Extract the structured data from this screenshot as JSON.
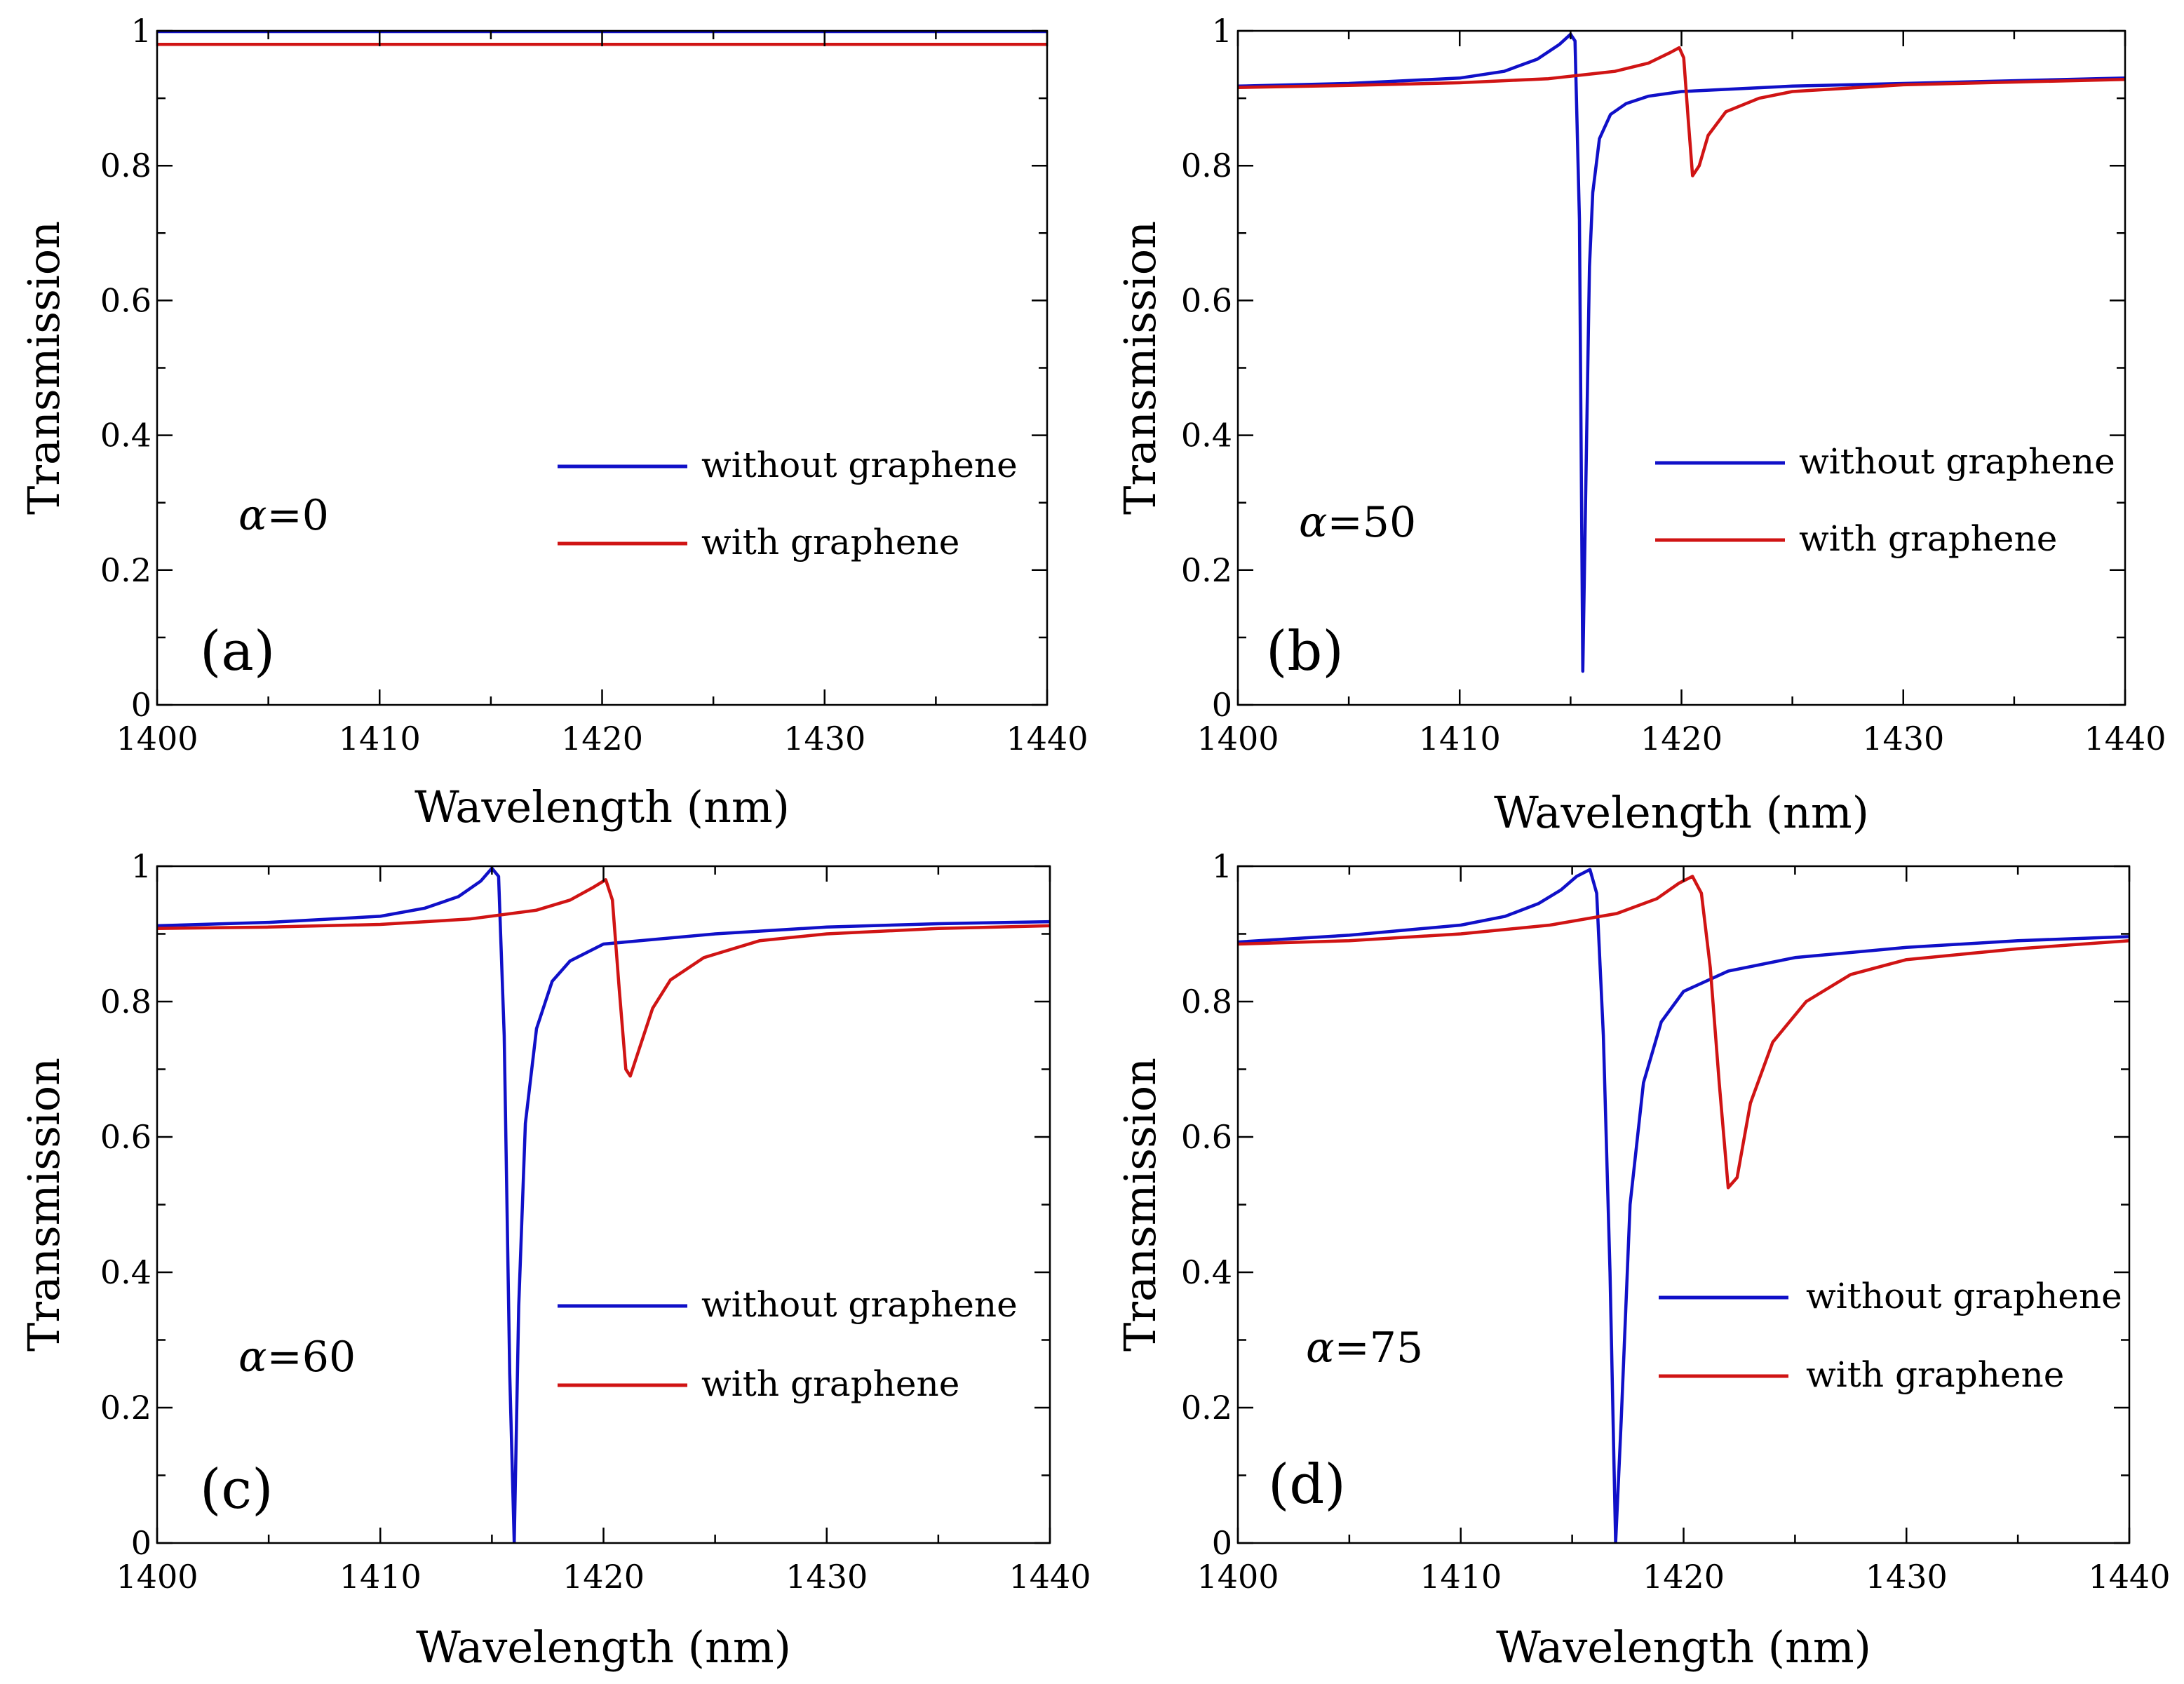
{
  "figure": {
    "series_names": [
      "without graphene",
      "with graphene"
    ],
    "series_colors": [
      "#1010c8",
      "#d01414"
    ]
  },
  "chart_data": [
    {
      "type": "line",
      "panel_label": "(a)",
      "annotation": "α=0",
      "xlabel": "Wavelength (nm)",
      "ylabel": "Transmission",
      "xlim": [
        1400,
        1440
      ],
      "ylim": [
        0,
        1
      ],
      "xticks": [
        "1400",
        "1410",
        "1420",
        "1430",
        "1440"
      ],
      "yticks": [
        "0",
        "0.2",
        "0.4",
        "0.6",
        "0.8",
        "1"
      ],
      "legend_position": "center-right",
      "series": [
        {
          "name": "without graphene",
          "color": "#1010c8",
          "x": [
            1400,
            1440
          ],
          "y": [
            0.999,
            0.999
          ]
        },
        {
          "name": "with graphene",
          "color": "#d01414",
          "x": [
            1400,
            1440
          ],
          "y": [
            0.98,
            0.98
          ]
        }
      ]
    },
    {
      "type": "line",
      "panel_label": "(b)",
      "annotation": "α=50",
      "xlabel": "Wavelength (nm)",
      "ylabel": "Transmission",
      "xlim": [
        1400,
        1440
      ],
      "ylim": [
        0,
        1
      ],
      "xticks": [
        "1400",
        "1410",
        "1420",
        "1430",
        "1440"
      ],
      "yticks": [
        "0",
        "0.2",
        "0.4",
        "0.6",
        "0.8",
        "1"
      ],
      "legend_position": "center-right",
      "series": [
        {
          "name": "without graphene",
          "color": "#1010c8",
          "x": [
            1400,
            1405,
            1410,
            1412,
            1413.5,
            1414.5,
            1415.0,
            1415.2,
            1415.4,
            1415.55,
            1415.7,
            1415.85,
            1416.0,
            1416.3,
            1416.8,
            1417.5,
            1418.5,
            1420,
            1425,
            1430,
            1435,
            1440
          ],
          "y": [
            0.918,
            0.922,
            0.93,
            0.94,
            0.958,
            0.98,
            0.995,
            0.985,
            0.72,
            0.05,
            0.35,
            0.65,
            0.76,
            0.84,
            0.876,
            0.892,
            0.903,
            0.91,
            0.918,
            0.922,
            0.926,
            0.93
          ]
        },
        {
          "name": "with graphene",
          "color": "#d01414",
          "x": [
            1400,
            1405,
            1410,
            1414,
            1417,
            1418.5,
            1419.5,
            1419.9,
            1420.1,
            1420.3,
            1420.5,
            1420.8,
            1421.2,
            1422,
            1423.5,
            1425,
            1430,
            1435,
            1440
          ],
          "y": [
            0.916,
            0.919,
            0.923,
            0.929,
            0.94,
            0.952,
            0.968,
            0.975,
            0.96,
            0.87,
            0.785,
            0.8,
            0.845,
            0.88,
            0.9,
            0.91,
            0.92,
            0.924,
            0.928
          ]
        }
      ]
    },
    {
      "type": "line",
      "panel_label": "(c)",
      "annotation": "α=60",
      "xlabel": "Wavelength (nm)",
      "ylabel": "Transmission",
      "xlim": [
        1400,
        1440
      ],
      "ylim": [
        0,
        1
      ],
      "xticks": [
        "1400",
        "1410",
        "1420",
        "1430",
        "1440"
      ],
      "yticks": [
        "0",
        "0.2",
        "0.4",
        "0.6",
        "0.8",
        "1"
      ],
      "legend_position": "center-right",
      "series": [
        {
          "name": "without graphene",
          "color": "#1010c8",
          "x": [
            1400,
            1405,
            1410,
            1412,
            1413.5,
            1414.5,
            1415.0,
            1415.3,
            1415.55,
            1415.8,
            1416.0,
            1416.2,
            1416.5,
            1417.0,
            1417.7,
            1418.5,
            1420,
            1425,
            1430,
            1435,
            1440
          ],
          "y": [
            0.912,
            0.917,
            0.926,
            0.938,
            0.955,
            0.978,
            0.997,
            0.985,
            0.75,
            0.25,
            0.0,
            0.35,
            0.62,
            0.76,
            0.83,
            0.86,
            0.885,
            0.9,
            0.91,
            0.915,
            0.918
          ]
        },
        {
          "name": "with graphene",
          "color": "#d01414",
          "x": [
            1400,
            1405,
            1410,
            1414,
            1417,
            1418.5,
            1419.5,
            1420.1,
            1420.4,
            1420.7,
            1421.0,
            1421.2,
            1421.6,
            1422.2,
            1423,
            1424.5,
            1427,
            1430,
            1435,
            1440
          ],
          "y": [
            0.908,
            0.91,
            0.914,
            0.922,
            0.935,
            0.95,
            0.968,
            0.98,
            0.95,
            0.82,
            0.7,
            0.69,
            0.73,
            0.79,
            0.832,
            0.865,
            0.89,
            0.9,
            0.908,
            0.912
          ]
        }
      ]
    },
    {
      "type": "line",
      "panel_label": "(d)",
      "annotation": "α=75",
      "xlabel": "Wavelength (nm)",
      "ylabel": "Transmission",
      "xlim": [
        1400,
        1440
      ],
      "ylim": [
        0,
        1
      ],
      "xticks": [
        "1400",
        "1410",
        "1420",
        "1430",
        "1440"
      ],
      "yticks": [
        "0",
        "0.2",
        "0.4",
        "0.6",
        "0.8",
        "1"
      ],
      "legend_position": "center-right",
      "series": [
        {
          "name": "without graphene",
          "color": "#1010c8",
          "x": [
            1400,
            1405,
            1410,
            1412,
            1413.5,
            1414.5,
            1415.2,
            1415.8,
            1416.1,
            1416.4,
            1416.7,
            1416.95,
            1417.2,
            1417.6,
            1418.2,
            1419,
            1420,
            1422,
            1425,
            1430,
            1435,
            1440
          ],
          "y": [
            0.888,
            0.898,
            0.913,
            0.926,
            0.945,
            0.965,
            0.985,
            0.995,
            0.96,
            0.75,
            0.4,
            0.0,
            0.18,
            0.5,
            0.68,
            0.77,
            0.815,
            0.845,
            0.865,
            0.88,
            0.89,
            0.896
          ]
        },
        {
          "name": "with graphene",
          "color": "#d01414",
          "x": [
            1400,
            1405,
            1410,
            1414,
            1417,
            1418.8,
            1419.8,
            1420.4,
            1420.8,
            1421.2,
            1421.6,
            1422.0,
            1422.4,
            1423,
            1424,
            1425.5,
            1427.5,
            1430,
            1435,
            1440
          ],
          "y": [
            0.885,
            0.89,
            0.9,
            0.913,
            0.93,
            0.952,
            0.975,
            0.985,
            0.96,
            0.85,
            0.68,
            0.525,
            0.54,
            0.65,
            0.74,
            0.8,
            0.84,
            0.862,
            0.878,
            0.89
          ]
        }
      ]
    }
  ]
}
